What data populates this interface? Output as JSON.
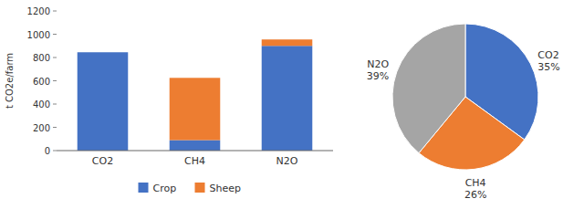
{
  "chart_data": [
    {
      "type": "bar",
      "stacked": true,
      "grid": false,
      "legend": "bottom",
      "categories": [
        "CO2",
        "CH4",
        "N2O"
      ],
      "series": [
        {
          "name": "Crop",
          "color": "#4472C4",
          "values": [
            845,
            90,
            900
          ]
        },
        {
          "name": "Sheep",
          "color": "#ED7D31",
          "values": [
            0,
            535,
            55
          ]
        }
      ],
      "y_label": "t CO2e/farm",
      "ylim": [
        0,
        1200
      ],
      "yticks": [
        0,
        200,
        400,
        600,
        800,
        1000,
        1200
      ]
    },
    {
      "type": "pie",
      "data_labels": true,
      "categories": [
        "CO2",
        "CH4",
        "N2O"
      ],
      "values": [
        35,
        26,
        39
      ],
      "value_labels": [
        "35%",
        "26%",
        "39%"
      ],
      "colors": [
        "#4472C4",
        "#ED7D31",
        "#A5A5A5"
      ]
    }
  ]
}
